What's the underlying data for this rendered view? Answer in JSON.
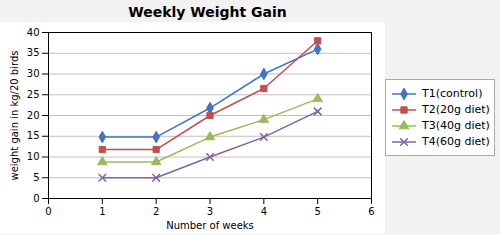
{
  "chart_data": {
    "type": "line",
    "title": "Weekly Weight Gain",
    "xlabel": "Number of weeks",
    "ylabel": "weight gain in kg/20 birds",
    "x": [
      1,
      2,
      3,
      4,
      5
    ],
    "series": [
      {
        "name": "T1(control)",
        "color": "#4472C4",
        "marker": "diamond",
        "values": [
          14.8,
          14.8,
          21.8,
          30.0,
          36.0
        ]
      },
      {
        "name": "T2(20g diet)",
        "color": "#C0504D",
        "marker": "square",
        "values": [
          11.8,
          11.8,
          20.0,
          26.5,
          38.0
        ]
      },
      {
        "name": "T3(40g diet)",
        "color": "#9BBB59",
        "marker": "triangle",
        "values": [
          8.8,
          8.8,
          14.8,
          19.0,
          24.0
        ]
      },
      {
        "name": "T4(60g diet)",
        "color": "#8064A2",
        "marker": "x",
        "values": [
          5.0,
          5.0,
          10.0,
          14.8,
          21.0
        ]
      }
    ],
    "xlim": [
      0,
      6
    ],
    "ylim": [
      0,
      40
    ],
    "xticks": [
      0,
      1,
      2,
      3,
      4,
      5,
      6
    ],
    "yticks": [
      0,
      5,
      10,
      15,
      20,
      25,
      30,
      35,
      40
    ],
    "grid": true,
    "legend": "right"
  }
}
